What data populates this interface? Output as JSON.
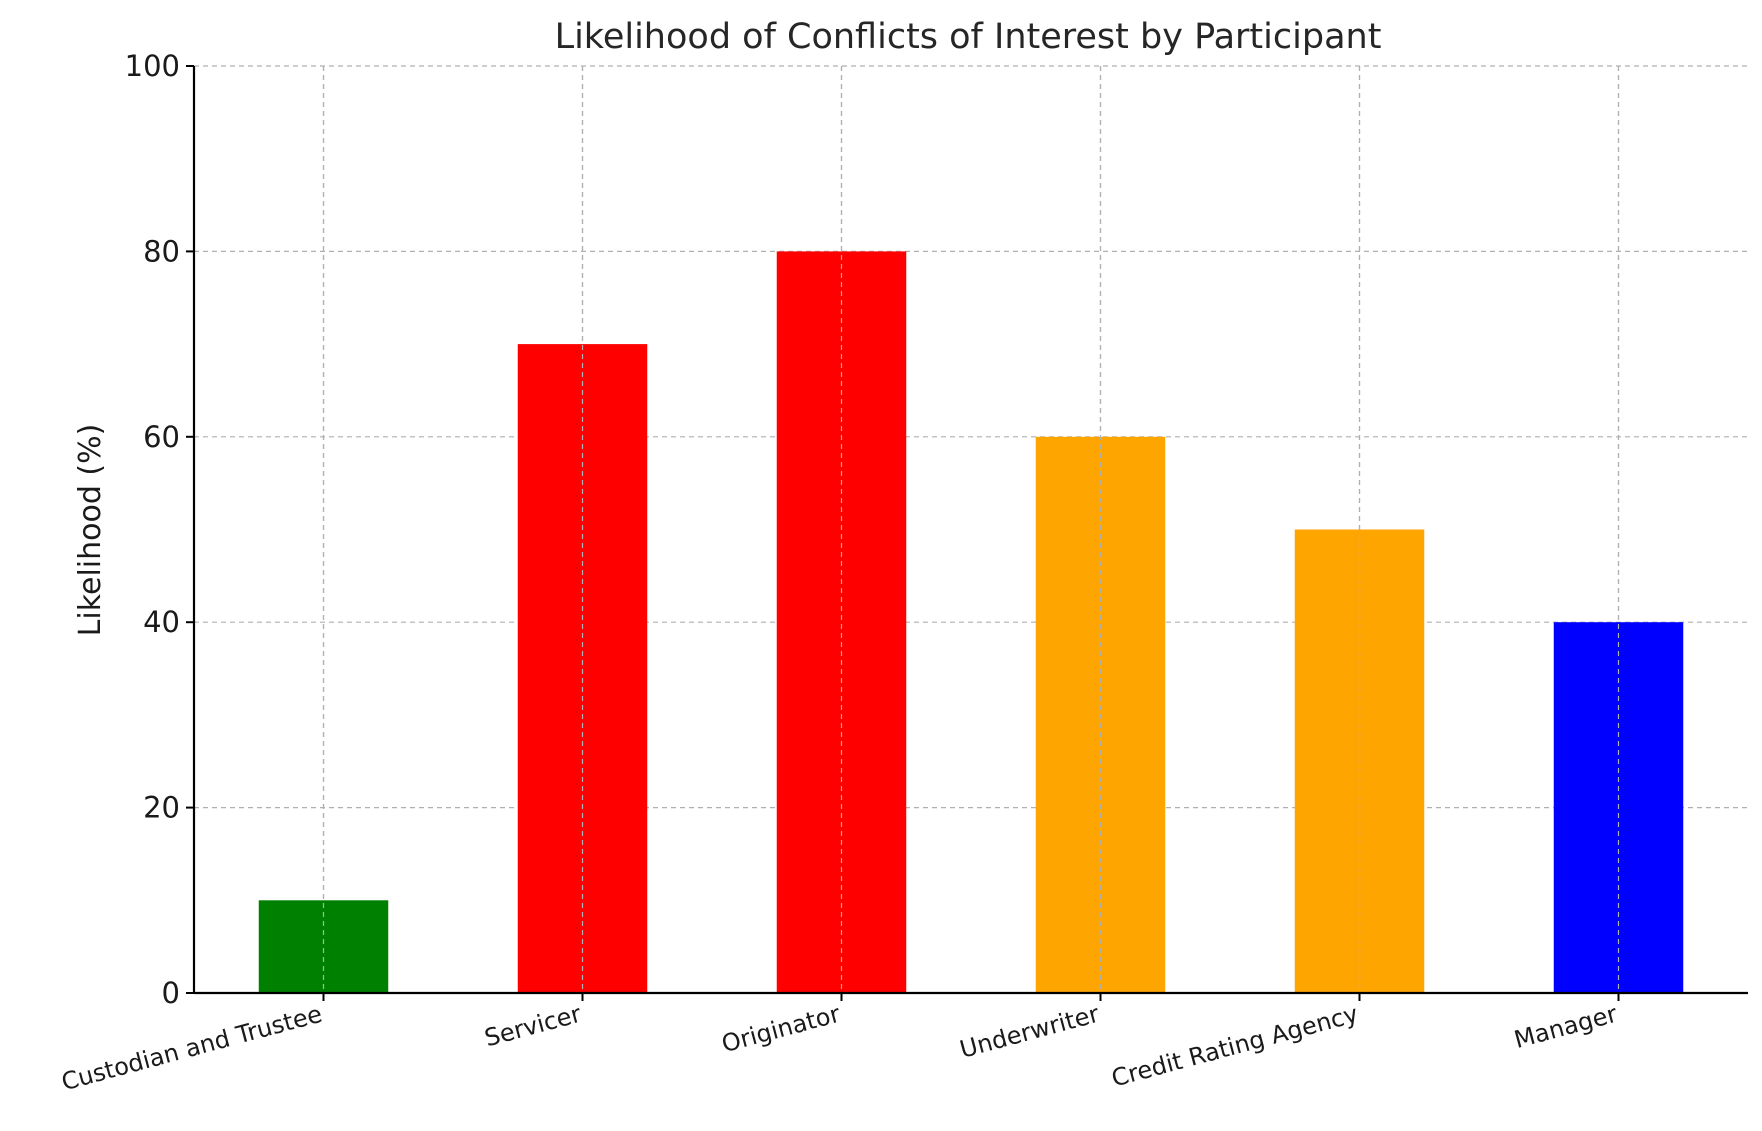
{
  "chart_data": {
    "type": "bar",
    "title": "Likelihood of Conflicts of Interest by Participant",
    "xlabel": "",
    "ylabel": "Likelihood (%)",
    "categories": [
      "Custodian and Trustee",
      "Servicer",
      "Originator",
      "Underwriter",
      "Credit Rating Agency",
      "Manager"
    ],
    "values": [
      10,
      70,
      80,
      60,
      50,
      40
    ],
    "colors": [
      "#008000",
      "#ff0000",
      "#ff0000",
      "#ffa500",
      "#ffa500",
      "#0000ff"
    ],
    "ylim": [
      0,
      100
    ],
    "yticks": [
      0,
      20,
      40,
      60,
      80,
      100
    ],
    "grid": true,
    "legend": "none"
  }
}
